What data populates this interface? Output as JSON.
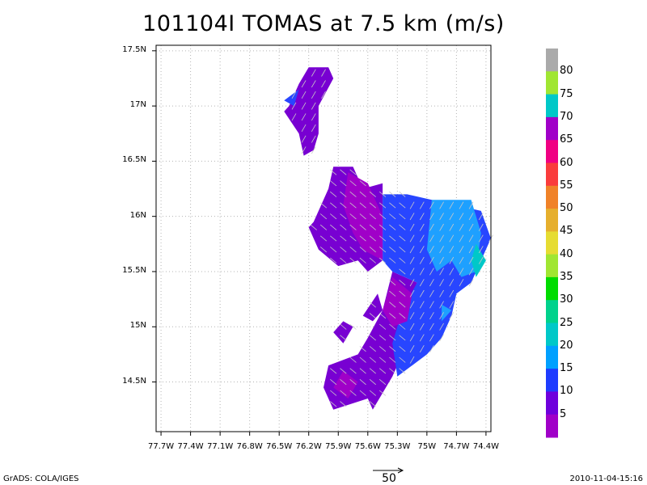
{
  "title": "101104I TOMAS at 7.5 km (m/s)",
  "footer_left": "GrADS: COLA/IGES",
  "footer_right": "2010-11-04-15:16",
  "reference_vector_label": "50",
  "chart_data": {
    "type": "heatmap",
    "title": "101104I TOMAS at 7.5 km (m/s)",
    "x_ticks": [
      "77.7W",
      "77.4W",
      "77.1W",
      "76.8W",
      "76.5W",
      "76.2W",
      "75.9W",
      "75.6W",
      "75.3W",
      "75W",
      "74.7W",
      "74.4W"
    ],
    "y_ticks": [
      "14.5N",
      "15N",
      "15.5N",
      "16N",
      "16.5N",
      "17N",
      "17.5N"
    ],
    "xlim": [
      -77.75,
      -74.35
    ],
    "ylim": [
      14.05,
      17.55
    ],
    "grid": true,
    "colorbar": {
      "labels": [
        "5",
        "10",
        "15",
        "20",
        "25",
        "30",
        "35",
        "40",
        "45",
        "50",
        "55",
        "60",
        "65",
        "70",
        "75",
        "80"
      ],
      "colors": [
        "#a000c8",
        "#6e00dc",
        "#1e3cff",
        "#00a0ff",
        "#00c8c8",
        "#00d28c",
        "#00dc00",
        "#a0e632",
        "#e6dc32",
        "#e6af2d",
        "#f08228",
        "#fa3c3c",
        "#f00082",
        "#a000c8",
        "#00c8c8",
        "#a0e632",
        "#aaaaaa"
      ],
      "placement": "right"
    },
    "wind_regions": [
      {
        "category": "5-10",
        "polygons": [
          [
            [
              -76.4,
              17.0
            ],
            [
              -76.3,
              17.2
            ],
            [
              -76.2,
              17.35
            ],
            [
              -76.0,
              17.35
            ],
            [
              -75.95,
              17.25
            ],
            [
              -76.1,
              17.0
            ],
            [
              -76.1,
              16.75
            ],
            [
              -76.15,
              16.6
            ],
            [
              -76.25,
              16.55
            ],
            [
              -76.3,
              16.75
            ],
            [
              -76.45,
              16.95
            ]
          ],
          [
            [
              -76.15,
              15.95
            ],
            [
              -76.0,
              16.25
            ],
            [
              -75.95,
              16.45
            ],
            [
              -75.75,
              16.45
            ],
            [
              -75.65,
              16.25
            ],
            [
              -75.45,
              16.3
            ],
            [
              -75.45,
              15.6
            ],
            [
              -75.6,
              15.5
            ],
            [
              -75.7,
              15.6
            ],
            [
              -75.9,
              15.55
            ],
            [
              -76.1,
              15.7
            ],
            [
              -76.2,
              15.9
            ]
          ],
          [
            [
              -75.35,
              15.5
            ],
            [
              -75.1,
              15.4
            ],
            [
              -75.2,
              15.2
            ],
            [
              -75.3,
              14.95
            ],
            [
              -75.25,
              14.75
            ],
            [
              -75.35,
              14.55
            ],
            [
              -75.55,
              14.25
            ],
            [
              -75.6,
              14.35
            ],
            [
              -75.95,
              14.25
            ],
            [
              -76.05,
              14.45
            ],
            [
              -76.0,
              14.65
            ],
            [
              -75.7,
              14.75
            ],
            [
              -75.6,
              14.9
            ],
            [
              -75.45,
              15.15
            ]
          ],
          [
            [
              -75.65,
              15.1
            ],
            [
              -75.5,
              15.3
            ],
            [
              -75.45,
              15.15
            ],
            [
              -75.55,
              15.05
            ]
          ],
          [
            [
              -75.95,
              14.95
            ],
            [
              -75.85,
              15.05
            ],
            [
              -75.75,
              15.0
            ],
            [
              -75.85,
              14.85
            ]
          ]
        ]
      },
      {
        "category": "10-15",
        "polygons": [
          [
            [
              -75.45,
              16.2
            ],
            [
              -75.2,
              16.2
            ],
            [
              -74.95,
              16.15
            ],
            [
              -74.7,
              16.1
            ],
            [
              -74.45,
              16.05
            ],
            [
              -74.35,
              15.8
            ],
            [
              -74.45,
              15.6
            ],
            [
              -74.55,
              15.4
            ],
            [
              -74.7,
              15.3
            ],
            [
              -74.75,
              15.1
            ],
            [
              -74.85,
              14.9
            ],
            [
              -75.0,
              14.75
            ],
            [
              -75.15,
              14.65
            ],
            [
              -75.3,
              14.55
            ],
            [
              -75.35,
              14.85
            ],
            [
              -75.25,
              15.15
            ],
            [
              -75.1,
              15.4
            ],
            [
              -75.35,
              15.5
            ],
            [
              -75.45,
              15.6
            ]
          ],
          [
            [
              -76.45,
              17.05
            ],
            [
              -76.3,
              17.15
            ],
            [
              -76.35,
              17.0
            ]
          ]
        ]
      },
      {
        "category": "15-20",
        "polygons": [
          [
            [
              -74.95,
              16.15
            ],
            [
              -74.55,
              16.15
            ],
            [
              -74.45,
              15.85
            ],
            [
              -74.5,
              15.5
            ],
            [
              -74.65,
              15.45
            ],
            [
              -74.75,
              15.6
            ],
            [
              -74.9,
              15.5
            ],
            [
              -75.0,
              15.7
            ]
          ],
          [
            [
              -74.85,
              15.2
            ],
            [
              -74.75,
              15.15
            ],
            [
              -74.85,
              15.05
            ]
          ]
        ]
      },
      {
        "category": "20-25",
        "polygons": [
          [
            [
              -74.5,
              15.75
            ],
            [
              -74.4,
              15.6
            ],
            [
              -74.5,
              15.45
            ],
            [
              -74.55,
              15.6
            ]
          ]
        ]
      },
      {
        "category": "5",
        "polygons": [
          [
            [
              -75.8,
              16.4
            ],
            [
              -75.6,
              16.3
            ],
            [
              -75.45,
              16.0
            ],
            [
              -75.45,
              15.6
            ],
            [
              -75.65,
              15.7
            ],
            [
              -75.75,
              15.85
            ],
            [
              -75.85,
              16.1
            ]
          ],
          [
            [
              -75.35,
              15.45
            ],
            [
              -75.15,
              15.3
            ],
            [
              -75.2,
              15.05
            ],
            [
              -75.35,
              15.0
            ],
            [
              -75.45,
              15.15
            ]
          ],
          [
            [
              -75.95,
              14.45
            ],
            [
              -75.85,
              14.6
            ],
            [
              -75.7,
              14.5
            ],
            [
              -75.8,
              14.35
            ]
          ]
        ]
      }
    ]
  }
}
